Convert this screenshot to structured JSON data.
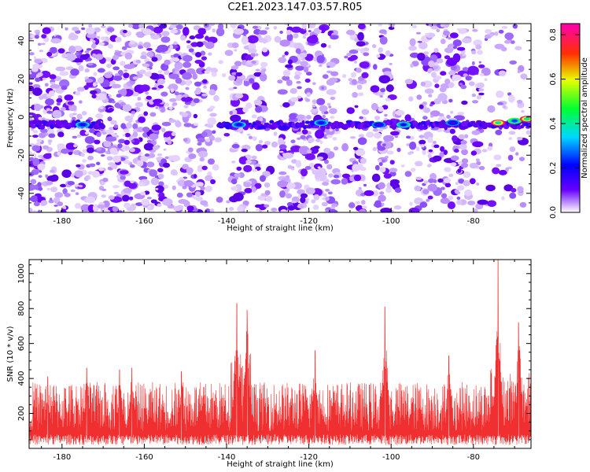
{
  "title": "C2E1.2023.147.03.57.R05",
  "chart_data": [
    {
      "type": "heatmap",
      "xlabel": "Height of straight line (km)",
      "ylabel": "Frequency (Hz)",
      "xlim": [
        -188,
        -66
      ],
      "ylim": [
        -50,
        49
      ],
      "xticks": [
        -180,
        -160,
        -140,
        -120,
        -100,
        -80
      ],
      "yticks": [
        -40,
        -20,
        0,
        20,
        40
      ],
      "colorbar": {
        "label": "Normalized spectral amplitude",
        "range": [
          0,
          0.85
        ],
        "ticks": [
          0.0,
          0.2,
          0.4,
          0.6,
          0.8
        ]
      },
      "band": {
        "frequency_hz": -4,
        "segments": [
          {
            "x0": -188,
            "x1": -170
          },
          {
            "x0": -142,
            "x1": -66
          }
        ],
        "peaks": [
          {
            "x": -175,
            "y": -4,
            "amplitude": 0.35
          },
          {
            "x": -137,
            "y": -4,
            "amplitude": 0.35
          },
          {
            "x": -117,
            "y": -3,
            "amplitude": 0.35
          },
          {
            "x": -103,
            "y": -4,
            "amplitude": 0.3
          },
          {
            "x": -97,
            "y": -4,
            "amplitude": 0.4
          },
          {
            "x": -85,
            "y": -3,
            "amplitude": 0.3
          },
          {
            "x": -74,
            "y": -3,
            "amplitude": 0.8
          },
          {
            "x": -70,
            "y": -2,
            "amplitude": 0.5
          },
          {
            "x": -67,
            "y": -1,
            "amplitude": 0.8
          }
        ]
      },
      "low_density_regions": [
        {
          "x0": -143,
          "x1": -139
        },
        {
          "x0": -130,
          "x1": -127
        },
        {
          "x0": -113,
          "x1": -110
        },
        {
          "x0": -106,
          "x1": -104
        },
        {
          "x0": -98,
          "x1": -96
        }
      ]
    },
    {
      "type": "line",
      "xlabel": "Height of straight line (km)",
      "ylabel": "SNR (10 * v/v)",
      "xlim": [
        -188,
        -66
      ],
      "ylim": [
        0,
        1080
      ],
      "xticks": [
        -180,
        -160,
        -140,
        -120,
        -100,
        -80
      ],
      "yticks": [
        200,
        400,
        600,
        800,
        1000
      ],
      "color": "#f03030",
      "baseline_range": [
        20,
        380
      ],
      "spikes": [
        {
          "x": -183.5,
          "y": 410
        },
        {
          "x": -174,
          "y": 460
        },
        {
          "x": -166,
          "y": 450
        },
        {
          "x": -163,
          "y": 460
        },
        {
          "x": -151,
          "y": 440
        },
        {
          "x": -137.5,
          "y": 830
        },
        {
          "x": -135,
          "y": 790
        },
        {
          "x": -118.5,
          "y": 560
        },
        {
          "x": -101.5,
          "y": 810
        },
        {
          "x": -86,
          "y": 530
        },
        {
          "x": -74,
          "y": 1080
        },
        {
          "x": -69,
          "y": 720
        }
      ]
    }
  ]
}
